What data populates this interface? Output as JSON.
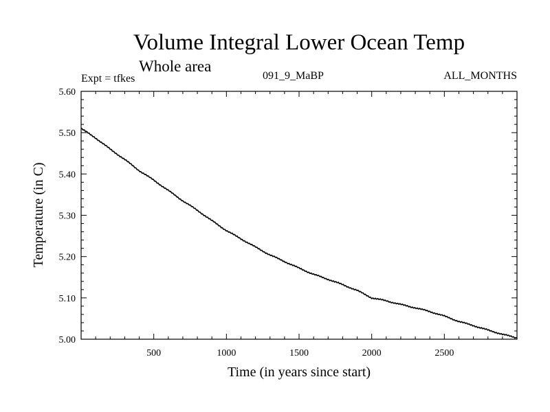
{
  "chart_data": {
    "type": "line",
    "title": "Volume Integral Lower Ocean Temp",
    "subtitle": "Whole area",
    "annotations": {
      "left": "Expt = tfkes",
      "center": "091_9_MaBP",
      "right": "ALL_MONTHS"
    },
    "xlabel": "Time (in years since start)",
    "ylabel": "Temperature (in C)",
    "xlim": [
      0,
      3000
    ],
    "ylim": [
      5.0,
      5.6
    ],
    "x_ticks": [
      500,
      1000,
      1500,
      2000,
      2500
    ],
    "y_ticks": [
      "5.00",
      "5.10",
      "5.20",
      "5.30",
      "5.40",
      "5.50",
      "5.60"
    ],
    "grid": false,
    "series": [
      {
        "color": "#000000",
        "x": [
          0,
          100,
          200,
          300,
          400,
          500,
          600,
          700,
          800,
          900,
          1000,
          1100,
          1200,
          1300,
          1400,
          1500,
          1600,
          1700,
          1800,
          1900,
          2000,
          2100,
          2200,
          2300,
          2400,
          2500,
          2600,
          2700,
          2800,
          2900,
          3000
        ],
        "y": [
          5.51,
          5.487,
          5.46,
          5.435,
          5.408,
          5.385,
          5.36,
          5.335,
          5.312,
          5.287,
          5.263,
          5.243,
          5.223,
          5.204,
          5.188,
          5.172,
          5.157,
          5.145,
          5.132,
          5.118,
          5.1,
          5.093,
          5.084,
          5.076,
          5.067,
          5.056,
          5.043,
          5.033,
          5.022,
          5.012,
          5.003
        ]
      }
    ]
  }
}
